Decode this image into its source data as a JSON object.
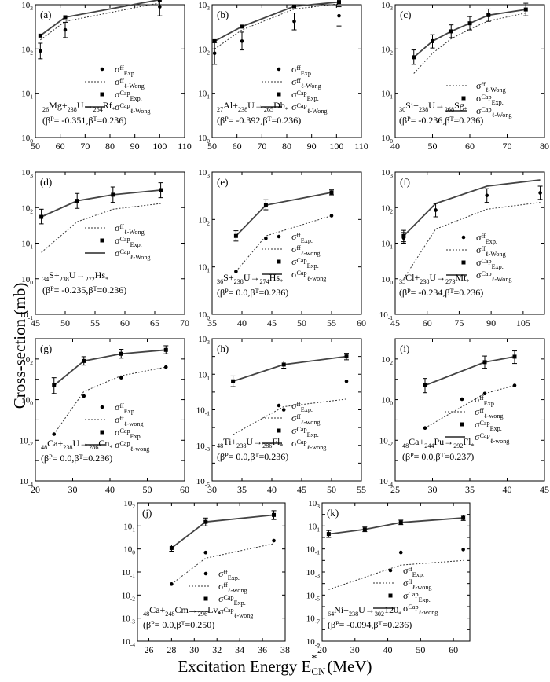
{
  "figure": {
    "ylabel": "Cross-section (mb)",
    "xlabel_main": "Excitation Energy E",
    "xlabel_sup": "*",
    "xlabel_sub": "CN",
    "xlabel_unit": "(MeV)"
  },
  "chart_data": [
    {
      "id": "a",
      "panel_label": "(a)",
      "type": "line",
      "reaction": {
        "p_mass": "26",
        "p": "Mg",
        "t_mass": "238",
        "t": "U",
        "cn_mass": "264",
        "cn": "Rf"
      },
      "deform": {
        "bp": "-0.351",
        "bt": "0.236"
      },
      "xlim": [
        50,
        110
      ],
      "xticks": [
        50,
        60,
        70,
        80,
        90,
        100,
        110
      ],
      "ylog": true,
      "ylim_exp": [
        0,
        3
      ],
      "legend_labels": [
        "Exp.",
        "ℓ-Wong",
        "Exp.",
        "ℓ-Wong"
      ],
      "series": {
        "ff_exp": {
          "x": [
            52,
            62,
            100
          ],
          "y": [
            90,
            270,
            900
          ],
          "err": [
            [
              60,
              135
            ],
            [
              180,
              400
            ],
            [
              560,
              1300
            ]
          ]
        },
        "ff_wong": {
          "x": [
            52,
            62,
            100
          ],
          "y": [
            160,
            420,
            1100
          ]
        },
        "cap_exp": {
          "x": [
            52,
            62,
            100
          ],
          "y": [
            200,
            520,
            1300
          ]
        },
        "cap_wong": {
          "x": [
            52,
            62,
            100
          ],
          "y": [
            200,
            520,
            1300
          ]
        }
      }
    },
    {
      "id": "b",
      "panel_label": "(b)",
      "type": "line",
      "reaction": {
        "p_mass": "27",
        "p": "Al",
        "t_mass": "238",
        "t": "U",
        "cn_mass": "265",
        "cn": "Db"
      },
      "deform": {
        "bp": "-0.392",
        "bt": "0.236"
      },
      "xlim": [
        50,
        110
      ],
      "xticks": [
        50,
        60,
        70,
        80,
        90,
        100,
        110
      ],
      "ylog": true,
      "ylim_exp": [
        0,
        3
      ],
      "legend_labels": [
        "Exp.",
        "ℓ-Wong",
        "Exp.",
        "ℓ-Wong"
      ],
      "series": {
        "ff_exp": {
          "x": [
            51,
            62,
            83,
            101
          ],
          "y": [
            80,
            150,
            420,
            560
          ],
          "err": [
            [
              45,
              140
            ],
            [
              95,
              240
            ],
            [
              270,
              650
            ],
            [
              330,
              900
            ]
          ]
        },
        "ff_wong": {
          "x": [
            51,
            62,
            83,
            101
          ],
          "y": [
            100,
            270,
            800,
            1050
          ]
        },
        "cap_exp": {
          "x": [
            51,
            62,
            83,
            101
          ],
          "y": [
            150,
            320,
            920,
            1150
          ]
        },
        "cap_wong": {
          "x": [
            51,
            62,
            83,
            101
          ],
          "y": [
            150,
            320,
            920,
            1150
          ]
        }
      }
    },
    {
      "id": "c",
      "panel_label": "(c)",
      "type": "line",
      "reaction": {
        "p_mass": "30",
        "p": "Si",
        "t_mass": "238",
        "t": "U",
        "cn_mass": "268",
        "cn": "Sg"
      },
      "deform": {
        "bp": "-0.236",
        "bt": "0.236"
      },
      "xlim": [
        40,
        80
      ],
      "xticks": [
        40,
        50,
        60,
        70,
        80
      ],
      "ylog": true,
      "ylim_exp": [
        0,
        3
      ],
      "legend_labels": [
        "ℓ-Wong",
        "Exp.",
        "ℓ-Wong"
      ],
      "series": {
        "ff_wong": {
          "x": [
            45,
            50,
            55,
            60,
            65,
            75
          ],
          "y": [
            28,
            80,
            170,
            280,
            430,
            650
          ]
        },
        "cap_exp": {
          "x": [
            45,
            50,
            55,
            60,
            65,
            75
          ],
          "y": [
            65,
            150,
            250,
            380,
            580,
            780
          ],
          "err": [
            [
              45,
              95
            ],
            [
              105,
              210
            ],
            [
              180,
              350
            ],
            [
              270,
              540
            ],
            [
              420,
              800
            ],
            [
              560,
              1080
            ]
          ]
        },
        "cap_wong": {
          "x": [
            45,
            50,
            55,
            60,
            65,
            75
          ],
          "y": [
            65,
            150,
            250,
            380,
            580,
            780
          ]
        }
      }
    },
    {
      "id": "d",
      "panel_label": "(d)",
      "type": "line",
      "reaction": {
        "p_mass": "34",
        "p": "S",
        "t_mass": "238",
        "t": "U",
        "cn_mass": "272",
        "cn": "Hs"
      },
      "deform": {
        "bp": "-0.235",
        "bt": "0.236"
      },
      "xlim": [
        45,
        70
      ],
      "xticks": [
        45,
        50,
        55,
        60,
        65,
        70
      ],
      "ylog": true,
      "ylim_exp": [
        -1,
        3
      ],
      "legend_labels": [
        "ℓ-Wong",
        "Exp.",
        "ℓ-Wong"
      ],
      "series": {
        "ff_wong": {
          "x": [
            46,
            52,
            58,
            66
          ],
          "y": [
            5.5,
            40,
            90,
            130
          ]
        },
        "cap_exp": {
          "x": [
            46,
            52,
            58,
            66
          ],
          "y": [
            55,
            155,
            230,
            310
          ],
          "err": [
            [
              35,
              90
            ],
            [
              95,
              250
            ],
            [
              140,
              380
            ],
            [
              190,
              500
            ]
          ]
        },
        "cap_wong": {
          "x": [
            46,
            52,
            58,
            66
          ],
          "y": [
            55,
            155,
            230,
            310
          ]
        }
      }
    },
    {
      "id": "e",
      "panel_label": "(e)",
      "type": "line",
      "reaction": {
        "p_mass": "36",
        "p": "S",
        "t_mass": "238",
        "t": "U",
        "cn_mass": "274",
        "cn": "Hs"
      },
      "deform": {
        "bp": "0.0",
        "bt": "0.236"
      },
      "xlim": [
        35,
        60
      ],
      "xticks": [
        35,
        40,
        45,
        50,
        55,
        60
      ],
      "ylog": true,
      "ylim_exp": [
        0,
        3
      ],
      "legend_labels": [
        "Exp.",
        "ℓ-wong",
        "Exp.",
        "ℓ-wong"
      ],
      "series": {
        "ff_exp": {
          "x": [
            39,
            44,
            55
          ],
          "y": [
            8,
            40,
            120
          ]
        },
        "ff_wong": {
          "x": [
            39,
            44,
            55
          ],
          "y": [
            8,
            45,
            120
          ]
        },
        "cap_exp": {
          "x": [
            39,
            44,
            55
          ],
          "y": [
            45,
            200,
            370
          ],
          "err": [
            [
              35,
              58
            ],
            [
              160,
              260
            ],
            [
              330,
              420
            ]
          ]
        },
        "cap_wong": {
          "x": [
            39,
            44,
            55
          ],
          "y": [
            45,
            200,
            370
          ]
        }
      }
    },
    {
      "id": "f",
      "panel_label": "(f)",
      "type": "line",
      "reaction": {
        "p_mass": "35",
        "p": "Cl",
        "t_mass": "238",
        "t": "U",
        "cn_mass": "273",
        "cn": "Mt"
      },
      "deform": {
        "bp": "-0.234",
        "bt": "0.236"
      },
      "xlim": [
        45,
        115
      ],
      "xticks": [
        45,
        60,
        75,
        90,
        105
      ],
      "ylog": true,
      "ylim_exp": [
        -1,
        3
      ],
      "legend_labels": [
        "Exp.",
        "ℓ-Wong",
        "Exp.",
        "ℓ-Wong"
      ],
      "series": {
        "ff_exp": {
          "x": [
            49,
            64,
            88,
            113
          ],
          "y": [
            14,
            85,
            220,
            260
          ],
          "err": [
            [
              10,
              20
            ],
            [
              55,
              130
            ],
            [
              140,
              340
            ],
            [
              170,
              400
            ]
          ]
        },
        "ff_wong": {
          "x": [
            49,
            64,
            88,
            113
          ],
          "y": [
            1,
            25,
            90,
            140
          ]
        },
        "cap_exp": {
          "x": [
            49
          ],
          "y": [
            16
          ],
          "err": [
            [
              11,
              23
            ]
          ]
        },
        "cap_wong": {
          "x": [
            49,
            64,
            88,
            113
          ],
          "y": [
            16,
            130,
            400,
            600
          ]
        }
      }
    },
    {
      "id": "g",
      "panel_label": "(g)",
      "type": "line",
      "reaction": {
        "p_mass": "48",
        "p": "Ca",
        "t_mass": "238",
        "t": "U",
        "cn_mass": "286",
        "cn": "Cn"
      },
      "deform": {
        "bp": "0.0",
        "bt": "0.236"
      },
      "xlim": [
        20,
        60
      ],
      "xticks": [
        20,
        30,
        40,
        50,
        60
      ],
      "ylog": true,
      "ylim_exp": [
        -4,
        3
      ],
      "ytick_exps": [
        -4,
        -2,
        0,
        2
      ],
      "legend_labels": [
        "Exp.",
        "ℓ-wong",
        "Exp.",
        "ℓ-wong"
      ],
      "series": {
        "ff_exp": {
          "x": [
            25,
            33,
            43,
            55
          ],
          "y": [
            0.02,
            1.5,
            12,
            40
          ]
        },
        "ff_wong": {
          "x": [
            25,
            33,
            43,
            55
          ],
          "y": [
            0.02,
            2.5,
            15,
            40
          ]
        },
        "cap_exp": {
          "x": [
            25,
            33,
            43,
            55
          ],
          "y": [
            5,
            80,
            180,
            280
          ],
          "err": [
            [
              2,
              12
            ],
            [
              50,
              130
            ],
            [
              110,
              300
            ],
            [
              180,
              450
            ]
          ]
        },
        "cap_wong": {
          "x": [
            25,
            33,
            43,
            55
          ],
          "y": [
            5,
            80,
            180,
            280
          ]
        }
      }
    },
    {
      "id": "h",
      "panel_label": "(h)",
      "type": "line",
      "reaction": {
        "p_mass": "48",
        "p": "Ti",
        "t_mass": "238",
        "t": "U",
        "cn_mass": "286",
        "cn": "Fl"
      },
      "deform": {
        "bp": "0.0",
        "bt": "0.236"
      },
      "xlim": [
        30,
        55
      ],
      "xticks": [
        30,
        35,
        40,
        45,
        50,
        55
      ],
      "ylog": true,
      "ylim_exp": [
        -5,
        3
      ],
      "ytick_exps": [
        -5,
        -3,
        -1,
        1,
        3
      ],
      "legend_labels": [
        "Exp.",
        "ℓ-wong",
        "Exp.",
        "ℓ-wong"
      ],
      "series": {
        "ff_exp": {
          "x": [
            42,
            52.5
          ],
          "y": [
            0.1,
            4
          ]
        },
        "ff_wong": {
          "x": [
            33.5,
            42,
            52.5
          ],
          "y": [
            0.004,
            0.15,
            0.4
          ]
        },
        "cap_exp": {
          "x": [
            33.5,
            42,
            52.5
          ],
          "y": [
            4,
            35,
            100
          ],
          "err": [
            [
              2,
              8
            ],
            [
              22,
              55
            ],
            [
              65,
              150
            ]
          ]
        },
        "cap_wong": {
          "x": [
            33.5,
            42,
            52.5
          ],
          "y": [
            4,
            35,
            100
          ]
        }
      }
    },
    {
      "id": "i",
      "panel_label": "(i)",
      "type": "line",
      "reaction": {
        "p_mass": "48",
        "p": "Ca",
        "t_mass": "244",
        "t": "Pu",
        "cn_mass": "292",
        "cn": "Fl"
      },
      "deform": {
        "bp": "0.0",
        "bt": "0.237"
      },
      "xlim": [
        25,
        45
      ],
      "xticks": [
        25,
        30,
        35,
        40,
        45
      ],
      "ylog": true,
      "ylim_exp": [
        -4,
        3
      ],
      "ytick_exps": [
        -4,
        -2,
        0,
        2
      ],
      "legend_labels": [
        "Exp.",
        "ℓ-wong",
        "Exp.",
        "ℓ-wong"
      ],
      "series": {
        "ff_exp": {
          "x": [
            29,
            37,
            41
          ],
          "y": [
            0.04,
            2,
            5
          ]
        },
        "ff_wong": {
          "x": [
            29,
            37,
            41
          ],
          "y": [
            0.04,
            2,
            5
          ]
        },
        "cap_exp": {
          "x": [
            29,
            37,
            41
          ],
          "y": [
            5,
            70,
            130
          ],
          "err": [
            [
              2.2,
              11
            ],
            [
              35,
              140
            ],
            [
              60,
              250
            ]
          ]
        },
        "cap_wong": {
          "x": [
            29,
            37,
            41
          ],
          "y": [
            5,
            70,
            130
          ]
        }
      }
    },
    {
      "id": "j",
      "panel_label": "(j)",
      "type": "line",
      "reaction": {
        "p_mass": "48",
        "p": "Ca",
        "t_mass": "248",
        "t": "Cm",
        "cn_mass": "296",
        "cn": "Lv"
      },
      "deform": {
        "bp": "0.0",
        "bt": "0.250"
      },
      "xlim": [
        25,
        38
      ],
      "xticks": [
        26,
        28,
        30,
        32,
        34,
        36,
        38
      ],
      "ylog": true,
      "ylim_exp": [
        -4,
        2
      ],
      "legend_labels": [
        "Exp.",
        "ℓ-wong",
        "Exp.",
        "ℓ-wong"
      ],
      "series": {
        "ff_exp": {
          "x": [
            28,
            31,
            37
          ],
          "y": [
            0.03,
            0.7,
            2.3
          ]
        },
        "ff_wong": {
          "x": [
            28,
            31,
            37
          ],
          "y": [
            0.03,
            0.4,
            1.7
          ]
        },
        "cap_exp": {
          "x": [
            28,
            31,
            37
          ],
          "y": [
            1.1,
            15,
            30
          ],
          "err": [
            [
              0.8,
              1.5
            ],
            [
              10,
              22
            ],
            [
              19,
              46
            ]
          ]
        },
        "cap_wong": {
          "x": [
            28,
            31,
            37
          ],
          "y": [
            1.1,
            15,
            30
          ]
        }
      }
    },
    {
      "id": "k",
      "panel_label": "(k)",
      "type": "line",
      "reaction": {
        "p_mass": "64",
        "p": "Ni",
        "t_mass": "238",
        "t": "U",
        "cn_mass": "302",
        "cn": "120"
      },
      "deform": {
        "bp": "-0.094",
        "bt": "0.236"
      },
      "xlim": [
        20,
        65
      ],
      "xticks": [
        20,
        30,
        40,
        50,
        60
      ],
      "ylog": true,
      "ylim_exp": [
        -9,
        3
      ],
      "ytick_exps": [
        -9,
        -7,
        -5,
        -3,
        -1,
        1,
        3
      ],
      "legend_labels": [
        "Exp.",
        "ℓ-wong",
        "Exp.",
        "ℓ-wong"
      ],
      "series": {
        "ff_exp": {
          "x": [
            44,
            63
          ],
          "y": [
            0.05,
            0.09
          ]
        },
        "ff_wong": {
          "x": [
            22,
            33,
            44,
            63
          ],
          "y": [
            3e-05,
            0.00035,
            0.004,
            0.01
          ]
        },
        "cap_exp": {
          "x": [
            22,
            33,
            44,
            63
          ],
          "y": [
            2,
            5,
            20,
            50
          ],
          "err": [
            [
              1,
              4
            ],
            [
              3.2,
              8
            ],
            [
              13,
              32
            ],
            [
              30,
              85
            ]
          ]
        },
        "cap_wong": {
          "x": [
            22,
            33,
            44,
            63
          ],
          "y": [
            2,
            5,
            20,
            50
          ]
        }
      }
    }
  ]
}
